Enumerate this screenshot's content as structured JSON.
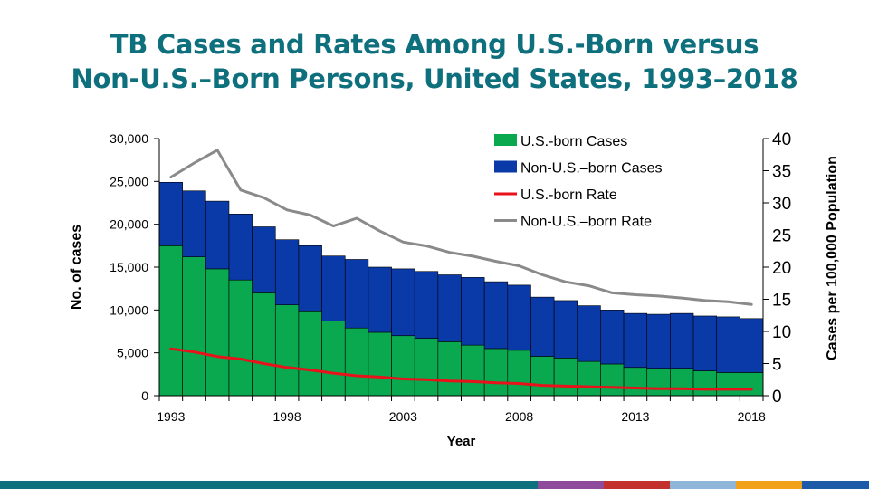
{
  "title": {
    "line1": "TB Cases and Rates Among U.S.-Born versus",
    "line2": "Non-U.S.–Born Persons, United States, 1993–2018"
  },
  "chart_data": {
    "type": "bar",
    "stacked": true,
    "x": [
      1993,
      1994,
      1995,
      1996,
      1997,
      1998,
      1999,
      2000,
      2001,
      2002,
      2003,
      2004,
      2005,
      2006,
      2007,
      2008,
      2009,
      2010,
      2011,
      2012,
      2013,
      2014,
      2015,
      2016,
      2017,
      2018
    ],
    "xticks": [
      "1993",
      "1998",
      "2003",
      "2008",
      "2013",
      "2018"
    ],
    "xlabel": "Year",
    "ylabel": "No. of cases",
    "y2label": "Cases per 100,000 Population",
    "ylim": [
      0,
      30000
    ],
    "y2lim": [
      0,
      40
    ],
    "yticks": [
      "0",
      "5,000",
      "10,000",
      "15,000",
      "20,000",
      "25,000",
      "30,000"
    ],
    "y2ticks": [
      "0",
      "5",
      "10",
      "15",
      "20",
      "25",
      "30",
      "35",
      "40"
    ],
    "series": [
      {
        "name": "U.S.-born Cases",
        "type": "bar",
        "color": "#0aa84f",
        "values": [
          17500,
          16200,
          14800,
          13500,
          12000,
          10600,
          9900,
          8700,
          7900,
          7400,
          7000,
          6700,
          6300,
          5900,
          5500,
          5300,
          4600,
          4400,
          4000,
          3700,
          3300,
          3200,
          3200,
          2900,
          2700,
          2700
        ]
      },
      {
        "name": "Non-U.S.–born Cases",
        "type": "bar",
        "color": "#0a39a8",
        "values": [
          7400,
          7700,
          7900,
          7700,
          7700,
          7600,
          7600,
          7600,
          8000,
          7600,
          7800,
          7800,
          7800,
          7900,
          7800,
          7600,
          6900,
          6700,
          6500,
          6300,
          6300,
          6300,
          6400,
          6400,
          6500,
          6300
        ]
      },
      {
        "name": "U.S.-born Rate",
        "type": "line",
        "axis": "right",
        "color": "#e8121b",
        "values": [
          7.3,
          6.8,
          6.1,
          5.7,
          5.0,
          4.4,
          4.0,
          3.5,
          3.1,
          2.9,
          2.6,
          2.5,
          2.3,
          2.2,
          2.0,
          1.9,
          1.6,
          1.5,
          1.4,
          1.3,
          1.2,
          1.1,
          1.1,
          1.0,
          1.0,
          1.0
        ]
      },
      {
        "name": "Non-U.S.–born Rate",
        "type": "line",
        "axis": "right",
        "color": "#8a8a8a",
        "values": [
          34.0,
          36.2,
          38.2,
          32.0,
          30.8,
          28.9,
          28.1,
          26.4,
          27.6,
          25.6,
          23.9,
          23.3,
          22.3,
          21.7,
          20.9,
          20.2,
          18.8,
          17.7,
          17.1,
          16.0,
          15.7,
          15.5,
          15.2,
          14.8,
          14.6,
          14.2
        ]
      }
    ],
    "legend": {
      "placement": "top-right"
    },
    "grid": false
  },
  "footer_colors": [
    "#0e6f7d",
    "#0e6f7d",
    "#8e4b9c",
    "#c4302b",
    "#8fb6d9",
    "#f2a21a",
    "#1d5aa8"
  ]
}
